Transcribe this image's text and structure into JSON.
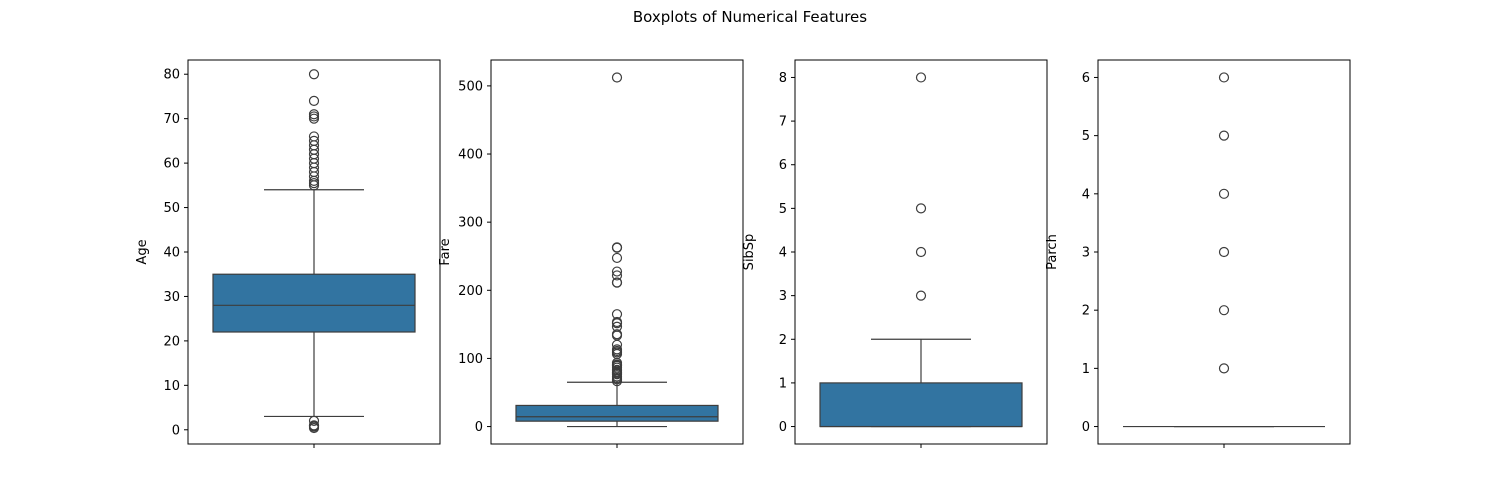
{
  "title": "Boxplots of Numerical Features",
  "colors": {
    "box_fill": "#3274a1",
    "line": "#3d3d3d",
    "frame": "#000000",
    "background": "#ffffff"
  },
  "chart_data": [
    {
      "type": "box",
      "ylabel": "Age",
      "ylim": [
        -3.2,
        83.2
      ],
      "yticks": [
        0,
        10,
        20,
        30,
        40,
        50,
        60,
        70,
        80
      ],
      "stats": {
        "whisker_low": 3,
        "q1": 22,
        "median": 28,
        "q3": 35,
        "whisker_high": 54
      },
      "outliers": [
        0.4,
        0.7,
        0.9,
        1,
        2,
        55,
        55.5,
        56,
        57,
        58,
        59,
        60,
        61,
        62,
        63,
        64,
        65,
        66,
        70,
        70.5,
        71,
        74,
        80
      ]
    },
    {
      "type": "box",
      "ylabel": "Fare",
      "ylim": [
        -25.6,
        538
      ],
      "yticks": [
        0,
        100,
        200,
        300,
        400,
        500
      ],
      "stats": {
        "whisker_low": 0,
        "q1": 7.9,
        "median": 14.45,
        "q3": 31,
        "whisker_high": 65
      },
      "outliers": [
        66.6,
        69.3,
        71.3,
        73.5,
        76.7,
        77.3,
        78.9,
        80,
        82.2,
        83.2,
        86.5,
        89.1,
        90,
        91.1,
        93.5,
        106.4,
        108.9,
        110.9,
        113.3,
        120,
        133.7,
        135.6,
        146.5,
        151.6,
        153.5,
        164.9,
        211.3,
        211.5,
        221.8,
        227.5,
        247.5,
        262.4,
        263,
        512.3
      ]
    },
    {
      "type": "box",
      "ylabel": "SibSp",
      "ylim": [
        -0.4,
        8.4
      ],
      "yticks": [
        0,
        1,
        2,
        3,
        4,
        5,
        6,
        7,
        8
      ],
      "stats": {
        "whisker_low": 0,
        "q1": 0,
        "median": 0,
        "q3": 1,
        "whisker_high": 2
      },
      "outliers": [
        3,
        4,
        5,
        8
      ]
    },
    {
      "type": "box",
      "ylabel": "Parch",
      "ylim": [
        -0.3,
        6.3
      ],
      "yticks": [
        0,
        1,
        2,
        3,
        4,
        5,
        6
      ],
      "stats": {
        "whisker_low": 0,
        "q1": 0,
        "median": 0,
        "q3": 0,
        "whisker_high": 0
      },
      "outliers": [
        1,
        2,
        3,
        4,
        5,
        6
      ]
    }
  ]
}
